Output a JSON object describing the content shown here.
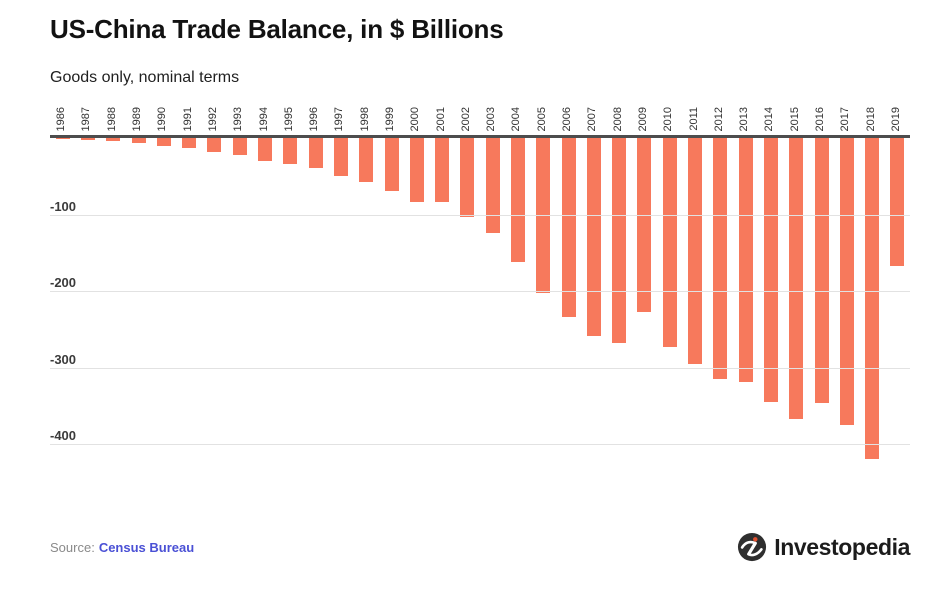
{
  "header": {
    "title": "US-China Trade Balance, in $ Billions",
    "subtitle": "Goods only, nominal terms"
  },
  "chart_data": {
    "type": "bar",
    "title": "US-China Trade Balance, in $ Billions",
    "subtitle": "Goods only, nominal terms",
    "xlabel": "",
    "ylabel": "",
    "categories": [
      "1986",
      "1987",
      "1988",
      "1989",
      "1990",
      "1991",
      "1992",
      "1993",
      "1994",
      "1995",
      "1996",
      "1997",
      "1998",
      "1999",
      "2000",
      "2001",
      "2002",
      "2003",
      "2004",
      "2005",
      "2006",
      "2007",
      "2008",
      "2009",
      "2010",
      "2011",
      "2012",
      "2013",
      "2014",
      "2015",
      "2016",
      "2017",
      "2018",
      "2019"
    ],
    "values": [
      -1.7,
      -2.8,
      -3.5,
      -6.2,
      -10.4,
      -12.7,
      -18.3,
      -22.8,
      -29.5,
      -33.8,
      -39.5,
      -49.7,
      -56.9,
      -68.7,
      -83.8,
      -83.1,
      -103.1,
      -124.1,
      -162.3,
      -202.3,
      -234.1,
      -258.5,
      -268.0,
      -226.9,
      -273.0,
      -295.2,
      -315.1,
      -318.7,
      -344.8,
      -367.3,
      -346.8,
      -375.2,
      -419.5,
      -167.0
    ],
    "yticks": [
      -100,
      -200,
      -300,
      -400
    ],
    "ylim": [
      -440,
      0
    ],
    "grid": true,
    "legend": "none",
    "bar_color": "#F7795C",
    "axis_color": "#4d4d4d",
    "gridline_color": "#e2e2e2"
  },
  "footer": {
    "source_label": "Source:",
    "source_link_text": "Census Bureau",
    "brand": "Investopedia"
  },
  "colors": {
    "link": "#4A50D5",
    "title_text": "#121212",
    "brand_dot": "#E0502F",
    "brand_circle": "#2f2f2f"
  }
}
